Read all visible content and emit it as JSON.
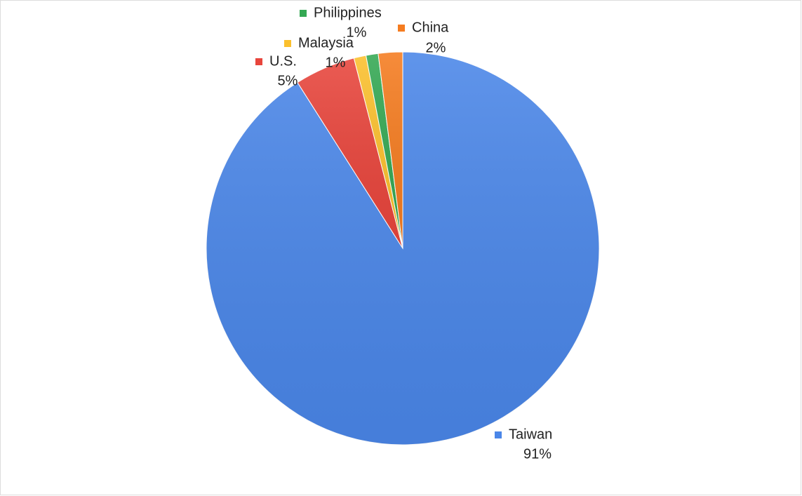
{
  "chart_data": {
    "type": "pie",
    "categories": [
      "Taiwan",
      "U.S.",
      "Malaysia",
      "Philippines",
      "China"
    ],
    "values": [
      91,
      5,
      1,
      1,
      2
    ],
    "value_labels": [
      "91%",
      "5%",
      "1%",
      "1%",
      "2%"
    ],
    "colors": [
      "#4a86e8",
      "#e8453c",
      "#fbc02d",
      "#34a853",
      "#f57c20"
    ]
  }
}
